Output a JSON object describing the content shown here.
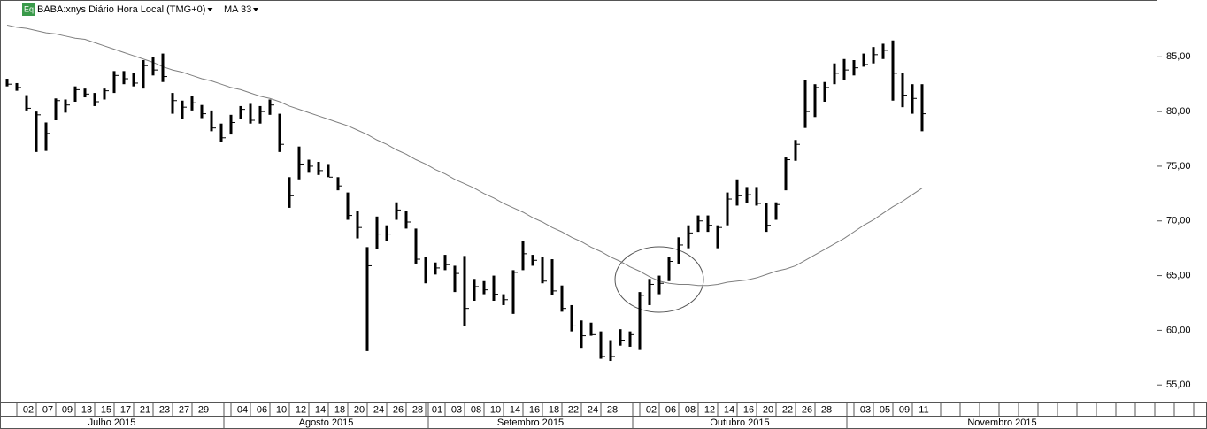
{
  "chart_data": {
    "type": "ohlc",
    "title": "BABA:xnys Diário Hora Local (TMG+0)",
    "badge": "Eq",
    "x": [
      "2015-06-30",
      "2015-07-01",
      "2015-07-02",
      "2015-07-06",
      "2015-07-07",
      "2015-07-08",
      "2015-07-09",
      "2015-07-10",
      "2015-07-13",
      "2015-07-14",
      "2015-07-15",
      "2015-07-16",
      "2015-07-17",
      "2015-07-20",
      "2015-07-21",
      "2015-07-22",
      "2015-07-23",
      "2015-07-24",
      "2015-07-27",
      "2015-07-28",
      "2015-07-29",
      "2015-07-30",
      "2015-07-31",
      "2015-08-03",
      "2015-08-04",
      "2015-08-05",
      "2015-08-06",
      "2015-08-07",
      "2015-08-10",
      "2015-08-11",
      "2015-08-12",
      "2015-08-13",
      "2015-08-14",
      "2015-08-17",
      "2015-08-18",
      "2015-08-19",
      "2015-08-20",
      "2015-08-21",
      "2015-08-24",
      "2015-08-25",
      "2015-08-26",
      "2015-08-27",
      "2015-08-28",
      "2015-08-31",
      "2015-09-01",
      "2015-09-02",
      "2015-09-03",
      "2015-09-04",
      "2015-09-08",
      "2015-09-09",
      "2015-09-10",
      "2015-09-11",
      "2015-09-14",
      "2015-09-15",
      "2015-09-16",
      "2015-09-17",
      "2015-09-18",
      "2015-09-21",
      "2015-09-22",
      "2015-09-23",
      "2015-09-24",
      "2015-09-25",
      "2015-09-28",
      "2015-09-29",
      "2015-09-30",
      "2015-10-01",
      "2015-10-02",
      "2015-10-05",
      "2015-10-06",
      "2015-10-07",
      "2015-10-08",
      "2015-10-09",
      "2015-10-12",
      "2015-10-13",
      "2015-10-14",
      "2015-10-15",
      "2015-10-16",
      "2015-10-19",
      "2015-10-20",
      "2015-10-21",
      "2015-10-22",
      "2015-10-23",
      "2015-10-26",
      "2015-10-27",
      "2015-10-28",
      "2015-10-29",
      "2015-10-30",
      "2015-11-02",
      "2015-11-03",
      "2015-11-04",
      "2015-11-05",
      "2015-11-06",
      "2015-11-09",
      "2015-11-10",
      "2015-11-11"
    ],
    "high": [
      83.0,
      82.6,
      81.5,
      80.0,
      79.0,
      81.2,
      81.1,
      82.3,
      82.1,
      81.7,
      82.1,
      83.7,
      83.7,
      83.5,
      84.7,
      85.0,
      85.3,
      81.7,
      81.0,
      81.4,
      80.6,
      80.1,
      78.9,
      79.7,
      80.5,
      80.7,
      80.5,
      81.1,
      79.8,
      74.0,
      76.8,
      75.6,
      75.4,
      75.2,
      74.0,
      72.6,
      70.9,
      67.6,
      70.4,
      69.6,
      71.7,
      70.9,
      69.3,
      66.7,
      66.2,
      66.9,
      65.9,
      66.8,
      64.7,
      64.5,
      65.0,
      63.3,
      65.5,
      68.2,
      66.9,
      66.7,
      66.5,
      64.1,
      62.3,
      60.9,
      60.7,
      59.9,
      59.1,
      60.1,
      59.9,
      63.5,
      64.7,
      65.0,
      66.7,
      68.5,
      69.6,
      70.5,
      70.5,
      69.6,
      72.6,
      73.8,
      73.1,
      73.1,
      71.6,
      71.7,
      75.8,
      77.4,
      82.9,
      82.5,
      82.7,
      84.4,
      84.8,
      84.7,
      85.3,
      85.9,
      86.2,
      86.5,
      83.5,
      82.5,
      82.5
    ],
    "low": [
      82.3,
      81.9,
      80.1,
      76.3,
      76.4,
      79.2,
      79.9,
      80.9,
      81.3,
      80.5,
      81.1,
      81.7,
      82.5,
      82.3,
      82.1,
      83.3,
      82.7,
      79.8,
      79.3,
      80.1,
      79.4,
      78.2,
      77.2,
      77.9,
      79.3,
      78.9,
      78.9,
      79.7,
      76.3,
      71.2,
      73.8,
      74.4,
      74.2,
      74.0,
      72.8,
      70.1,
      68.4,
      58.1,
      67.4,
      68.2,
      70.1,
      69.3,
      66.1,
      64.3,
      65.1,
      65.5,
      63.5,
      60.4,
      62.7,
      63.3,
      62.7,
      62.3,
      61.5,
      65.5,
      65.9,
      64.3,
      63.2,
      61.7,
      59.9,
      58.4,
      59.5,
      57.4,
      57.2,
      58.6,
      58.5,
      58.2,
      62.3,
      63.3,
      64.5,
      66.1,
      67.5,
      69.0,
      69.0,
      67.5,
      69.6,
      71.4,
      71.6,
      71.4,
      69.0,
      70.1,
      72.8,
      75.5,
      78.5,
      79.5,
      80.9,
      82.5,
      82.9,
      83.3,
      84.1,
      84.4,
      84.8,
      81.0,
      80.4,
      79.8,
      78.2
    ],
    "close": [
      82.5,
      82.2,
      80.3,
      79.7,
      78.0,
      81.0,
      80.6,
      82.0,
      81.6,
      80.9,
      81.9,
      83.3,
      83.0,
      82.6,
      84.2,
      83.8,
      83.2,
      81.0,
      80.4,
      80.8,
      79.8,
      78.5,
      77.6,
      79.0,
      80.2,
      79.2,
      80.0,
      80.6,
      77.0,
      72.3,
      75.2,
      75.0,
      74.6,
      74.0,
      73.2,
      70.5,
      69.4,
      65.9,
      68.8,
      68.8,
      71.0,
      69.9,
      66.5,
      64.6,
      65.7,
      66.0,
      65.2,
      62.0,
      64.0,
      63.7,
      63.3,
      62.8,
      65.3,
      67.0,
      66.4,
      64.5,
      63.6,
      62.0,
      60.4,
      59.5,
      59.6,
      57.6,
      57.6,
      59.1,
      59.6,
      63.2,
      64.2,
      64.3,
      66.3,
      67.8,
      68.9,
      70.0,
      69.6,
      69.4,
      72.0,
      72.3,
      72.4,
      71.6,
      69.6,
      71.5,
      75.6,
      77.0,
      80.0,
      82.2,
      82.2,
      83.5,
      83.8,
      84.0,
      84.3,
      85.2,
      85.6,
      83.5,
      81.5,
      81.2,
      79.8
    ],
    "color": "#000000",
    "ma": {
      "name": "MA 33",
      "color": "#7f7f7f",
      "values": [
        87.9,
        87.7,
        87.6,
        87.4,
        87.2,
        87.1,
        86.9,
        86.7,
        86.6,
        86.3,
        86.0,
        85.7,
        85.4,
        85.1,
        84.8,
        84.5,
        84.1,
        83.8,
        83.6,
        83.3,
        83.0,
        82.8,
        82.5,
        82.2,
        82.0,
        81.7,
        81.4,
        81.2,
        80.9,
        80.5,
        80.2,
        79.9,
        79.6,
        79.3,
        79.0,
        78.7,
        78.3,
        77.9,
        77.4,
        77.0,
        76.5,
        76.1,
        75.6,
        75.2,
        74.7,
        74.3,
        73.8,
        73.4,
        73.0,
        72.5,
        72.1,
        71.6,
        71.2,
        70.8,
        70.3,
        69.9,
        69.4,
        69.0,
        68.5,
        68.1,
        67.6,
        67.2,
        66.7,
        66.3,
        65.8,
        65.4,
        64.9,
        64.5,
        64.3,
        64.2,
        64.2,
        64.1,
        64.1,
        64.2,
        64.4,
        64.5,
        64.6,
        64.8,
        65.1,
        65.4,
        65.6,
        65.9,
        66.4,
        66.9,
        67.4,
        67.9,
        68.4,
        69.0,
        69.6,
        70.1,
        70.7,
        71.3,
        71.8,
        72.4,
        73.0
      ]
    },
    "xticks": [
      {
        "value": "2015-07-02",
        "label": "02"
      },
      {
        "value": "2015-07-07",
        "label": "07"
      },
      {
        "value": "2015-07-09",
        "label": "09"
      },
      {
        "value": "2015-07-13",
        "label": "13"
      },
      {
        "value": "2015-07-15",
        "label": "15"
      },
      {
        "value": "2015-07-17",
        "label": "17"
      },
      {
        "value": "2015-07-21",
        "label": "21"
      },
      {
        "value": "2015-07-23",
        "label": "23"
      },
      {
        "value": "2015-07-27",
        "label": "27"
      },
      {
        "value": "2015-07-29",
        "label": "29"
      },
      {
        "value": "2015-08-04",
        "label": "04"
      },
      {
        "value": "2015-08-06",
        "label": "06"
      },
      {
        "value": "2015-08-10",
        "label": "10"
      },
      {
        "value": "2015-08-12",
        "label": "12"
      },
      {
        "value": "2015-08-14",
        "label": "14"
      },
      {
        "value": "2015-08-18",
        "label": "18"
      },
      {
        "value": "2015-08-20",
        "label": "20"
      },
      {
        "value": "2015-08-24",
        "label": "24"
      },
      {
        "value": "2015-08-26",
        "label": "26"
      },
      {
        "value": "2015-08-28",
        "label": "28"
      },
      {
        "value": "2015-09-01",
        "label": "01"
      },
      {
        "value": "2015-09-03",
        "label": "03"
      },
      {
        "value": "2015-09-08",
        "label": "08"
      },
      {
        "value": "2015-09-10",
        "label": "10"
      },
      {
        "value": "2015-09-14",
        "label": "14"
      },
      {
        "value": "2015-09-16",
        "label": "16"
      },
      {
        "value": "2015-09-18",
        "label": "18"
      },
      {
        "value": "2015-09-22",
        "label": "22"
      },
      {
        "value": "2015-09-24",
        "label": "24"
      },
      {
        "value": "2015-09-28",
        "label": "28"
      },
      {
        "value": "2015-10-02",
        "label": "02"
      },
      {
        "value": "2015-10-06",
        "label": "06"
      },
      {
        "value": "2015-10-08",
        "label": "08"
      },
      {
        "value": "2015-10-12",
        "label": "12"
      },
      {
        "value": "2015-10-14",
        "label": "14"
      },
      {
        "value": "2015-10-16",
        "label": "16"
      },
      {
        "value": "2015-10-20",
        "label": "20"
      },
      {
        "value": "2015-10-22",
        "label": "22"
      },
      {
        "value": "2015-10-26",
        "label": "26"
      },
      {
        "value": "2015-10-28",
        "label": "28"
      },
      {
        "value": "2015-11-03",
        "label": "03"
      },
      {
        "value": "2015-11-05",
        "label": "05"
      },
      {
        "value": "2015-11-09",
        "label": "09"
      },
      {
        "value": "2015-11-11",
        "label": "11"
      }
    ],
    "months": [
      {
        "value": "2015-07",
        "label": "Julho 2015"
      },
      {
        "value": "2015-08",
        "label": "Agosto 2015"
      },
      {
        "value": "2015-09",
        "label": "Setembro 2015"
      },
      {
        "value": "2015-10",
        "label": "Outubro 2015"
      },
      {
        "value": "2015-11",
        "label": "Novembro 2015"
      }
    ],
    "ylim": [
      53.4,
      90.2
    ],
    "yticks": [
      {
        "value": 55,
        "label": "55,00"
      },
      {
        "value": 60,
        "label": "60,00"
      },
      {
        "value": 65,
        "label": "65,00"
      },
      {
        "value": 70,
        "label": "70,00"
      },
      {
        "value": 75,
        "label": "75,00"
      },
      {
        "value": 80,
        "label": "80,00"
      },
      {
        "value": 85,
        "label": "85,00"
      }
    ]
  }
}
